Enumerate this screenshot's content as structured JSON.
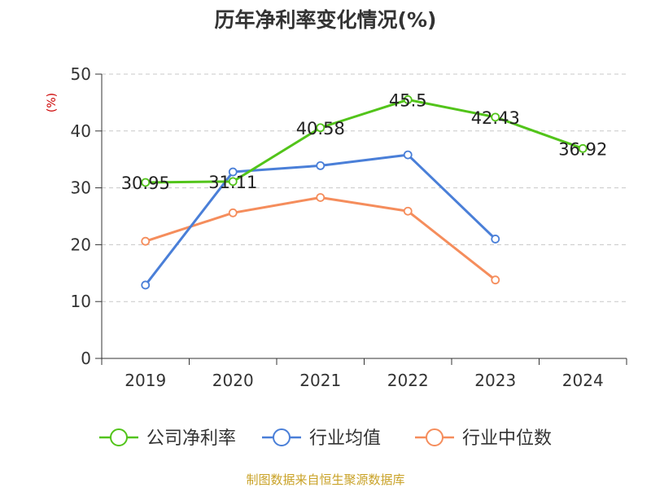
{
  "chart_data": {
    "type": "line",
    "title": "历年净利率变化情况(%)",
    "ylabel": "(%)",
    "xlabel": "",
    "categories": [
      "2019",
      "2020",
      "2021",
      "2022",
      "2023",
      "2024"
    ],
    "ylim": [
      0,
      50
    ],
    "yticks": [
      0,
      10,
      20,
      30,
      40,
      50
    ],
    "grid": true,
    "legend_position": "bottom",
    "series": [
      {
        "name": "公司净利率",
        "color": "#52c41a",
        "values": [
          30.95,
          31.11,
          40.58,
          45.5,
          42.43,
          36.92
        ],
        "labels": [
          "30.95",
          "31.11",
          "40.58",
          "45.5",
          "42.43",
          "36.92"
        ]
      },
      {
        "name": "行业均值",
        "color": "#4a7fd8",
        "values": [
          12.9,
          32.8,
          33.9,
          35.8,
          21.0,
          null
        ]
      },
      {
        "name": "行业中位数",
        "color": "#f58d5c",
        "values": [
          20.6,
          25.6,
          28.3,
          25.9,
          13.8,
          null
        ]
      }
    ],
    "source": "制图数据来自恒生聚源数据库"
  }
}
